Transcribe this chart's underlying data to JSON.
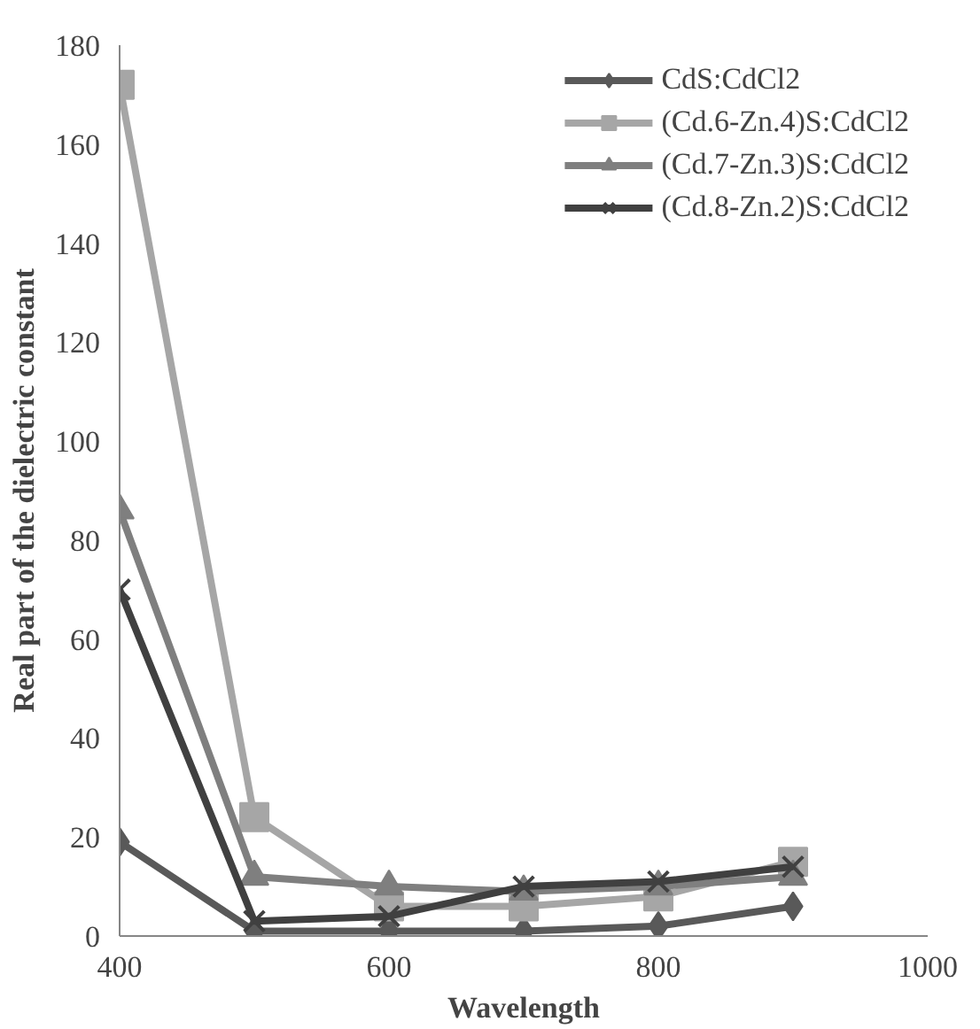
{
  "chart_data": {
    "type": "line",
    "xlabel": "Wavelength",
    "ylabel": "Real part of the dielectric constant",
    "x": [
      400,
      500,
      600,
      700,
      800,
      900
    ],
    "xlim": [
      400,
      1000
    ],
    "xticks": [
      400,
      600,
      800,
      1000
    ],
    "ylim": [
      0,
      180
    ],
    "yticks": [
      0,
      20,
      40,
      60,
      80,
      100,
      120,
      140,
      160,
      180
    ],
    "grid": false,
    "legend": "top right",
    "series": [
      {
        "name": "CdS:CdCl2",
        "color": "#595959",
        "marker": "diamond",
        "values": [
          19,
          1,
          1,
          1,
          2,
          6
        ]
      },
      {
        "name": "(Cd.6-Zn.4)S:CdCl2",
        "color": "#a6a6a6",
        "marker": "square",
        "values": [
          172,
          24,
          6,
          6,
          8,
          15
        ]
      },
      {
        "name": "(Cd.7-Zn.3)S:CdCl2",
        "color": "#7f7f7f",
        "marker": "triangle",
        "values": [
          86,
          12,
          10,
          9,
          10,
          12
        ]
      },
      {
        "name": "(Cd.8-Zn.2)S:CdCl2",
        "color": "#404040",
        "marker": "cross",
        "values": [
          70,
          3,
          4,
          10,
          11,
          14
        ]
      }
    ]
  }
}
